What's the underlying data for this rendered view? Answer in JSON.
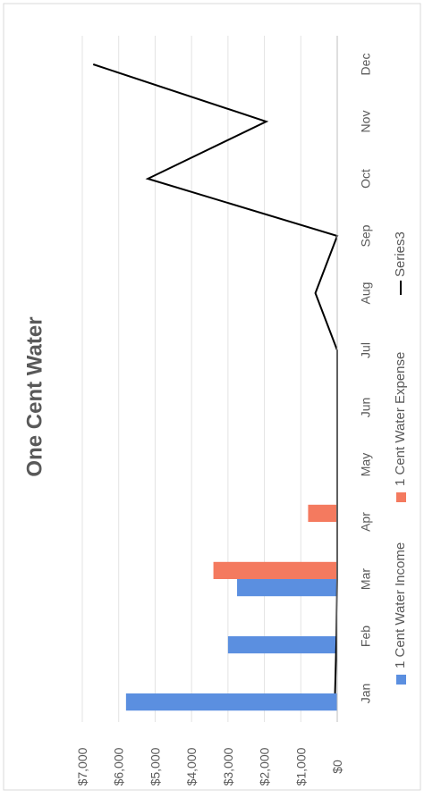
{
  "chart_data": {
    "type": "bar",
    "title": "One Cent Water",
    "orientation": "rotated-90-ccw",
    "categories": [
      "Jan",
      "Feb",
      "Mar",
      "Apr",
      "May",
      "Jun",
      "Jul",
      "Aug",
      "Sep",
      "Oct",
      "Nov",
      "Dec"
    ],
    "y_ticks": [
      "$0",
      "$1,000",
      "$2,000",
      "$3,000",
      "$4,000",
      "$5,000",
      "$6,000",
      "$7,000"
    ],
    "ylim": [
      0,
      7000
    ],
    "grid": true,
    "legend_position": "bottom",
    "series": [
      {
        "name": "1 Cent Water Income",
        "kind": "bar",
        "color": "#5b8fe0",
        "values": [
          5800,
          3000,
          2750,
          0,
          0,
          0,
          0,
          0,
          0,
          0,
          0,
          0
        ]
      },
      {
        "name": "1 Cent Water Expense",
        "kind": "bar",
        "color": "#f47a5f",
        "values": [
          0,
          0,
          3400,
          800,
          0,
          0,
          0,
          0,
          0,
          0,
          0,
          0
        ]
      },
      {
        "name": "Series3",
        "kind": "line",
        "color": "#000000",
        "values": [
          60,
          20,
          0,
          0,
          0,
          0,
          0,
          600,
          0,
          5200,
          1950,
          6700
        ]
      }
    ]
  }
}
